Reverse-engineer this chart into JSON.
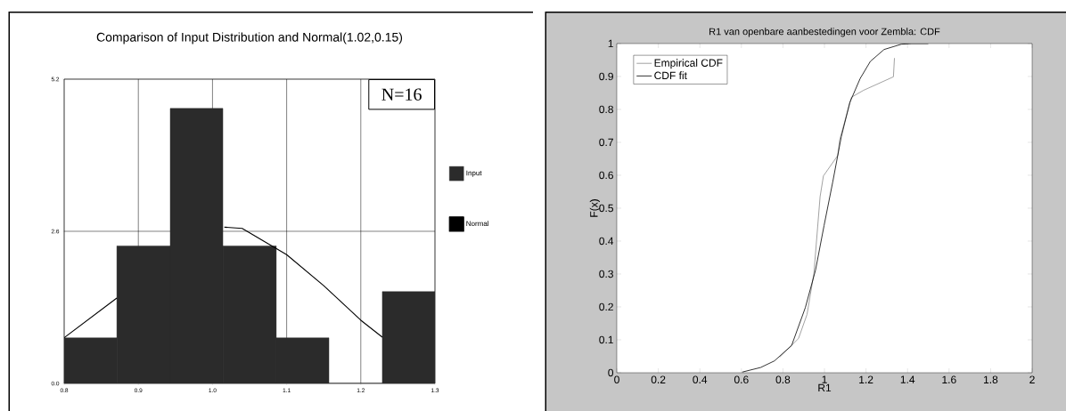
{
  "chart_data": [
    {
      "type": "histogram",
      "title": "Comparison of Input Distribution and Normal(1.02,0.15)",
      "bins": [
        0.8,
        0.871,
        0.943,
        1.014,
        1.086,
        1.157,
        1.229,
        1.3
      ],
      "series": [
        {
          "name": "Input",
          "type": "histogram",
          "color": "#2b2b2b",
          "values": [
            0.78,
            2.35,
            4.7,
            2.35,
            0.78,
            0,
            1.57
          ]
        },
        {
          "name": "Normal",
          "type": "line",
          "color": "#000000",
          "x": [
            0.8,
            0.871,
            0.943,
            1.016,
            1.04,
            1.1,
            1.15,
            1.2,
            1.229
          ],
          "values": [
            0.78,
            1.46,
            null,
            2.67,
            2.65,
            2.2,
            1.67,
            1.08,
            0.79
          ]
        }
      ],
      "xlim": [
        0.8,
        1.3
      ],
      "xticks": [
        {
          "value": 0.8,
          "label": "0.8"
        },
        {
          "value": 0.9,
          "label": "0.9"
        },
        {
          "value": 1.0,
          "label": "1.0"
        },
        {
          "value": 1.1,
          "label": "1.1"
        },
        {
          "value": 1.2,
          "label": "1.2"
        },
        {
          "value": 1.3,
          "label": "1.3"
        }
      ],
      "ylim": [
        0,
        5.2
      ],
      "yticks": [
        {
          "value": 0,
          "label": "0.0"
        },
        {
          "value": 2.6,
          "label": "2.6"
        },
        {
          "value": 5.2,
          "label": "5.2"
        }
      ],
      "grid": true,
      "legend": "right",
      "marker": "none",
      "annotations": [
        "N=16"
      ]
    },
    {
      "type": "line",
      "title": "R1 van openbare aanbestedingen voor Zembla: CDF",
      "xlabel": "R1",
      "ylabel": "F(x)",
      "series": [
        {
          "name": "Empirical CDF",
          "color": "#8a8a8a",
          "x": [
            0.784,
            0.875,
            0.916,
            0.949,
            0.979,
            0.995,
            1.064,
            1.073,
            1.13,
            1.188,
            1.332,
            1.337
          ],
          "values": [
            0.047,
            0.104,
            0.177,
            0.301,
            0.535,
            0.598,
            0.66,
            0.707,
            0.837,
            0.858,
            0.899,
            0.956
          ]
        },
        {
          "name": "CDF fit",
          "color": "#000000",
          "x": [
            0.604,
            0.693,
            0.759,
            0.842,
            0.908,
            0.957,
            0.998,
            1.04,
            1.081,
            1.122,
            1.172,
            1.221,
            1.287,
            1.37,
            1.42,
            1.5
          ],
          "values": [
            0.002,
            0.016,
            0.036,
            0.083,
            0.198,
            0.312,
            0.447,
            0.58,
            0.717,
            0.821,
            0.894,
            0.946,
            0.982,
            0.998,
            1.0,
            1.0
          ]
        }
      ],
      "xlim": [
        0,
        2
      ],
      "xticks": [
        0,
        0.2,
        0.4,
        0.6,
        0.8,
        1,
        1.2,
        1.4,
        1.6,
        1.8,
        2
      ],
      "ylim": [
        0,
        1
      ],
      "yticks": [
        0,
        0.1,
        0.2,
        0.3,
        0.4,
        0.5,
        0.6,
        0.7,
        0.8,
        0.9,
        1
      ],
      "grid": false,
      "legend": "top left",
      "marker": "none",
      "line_style": "solid"
    }
  ]
}
